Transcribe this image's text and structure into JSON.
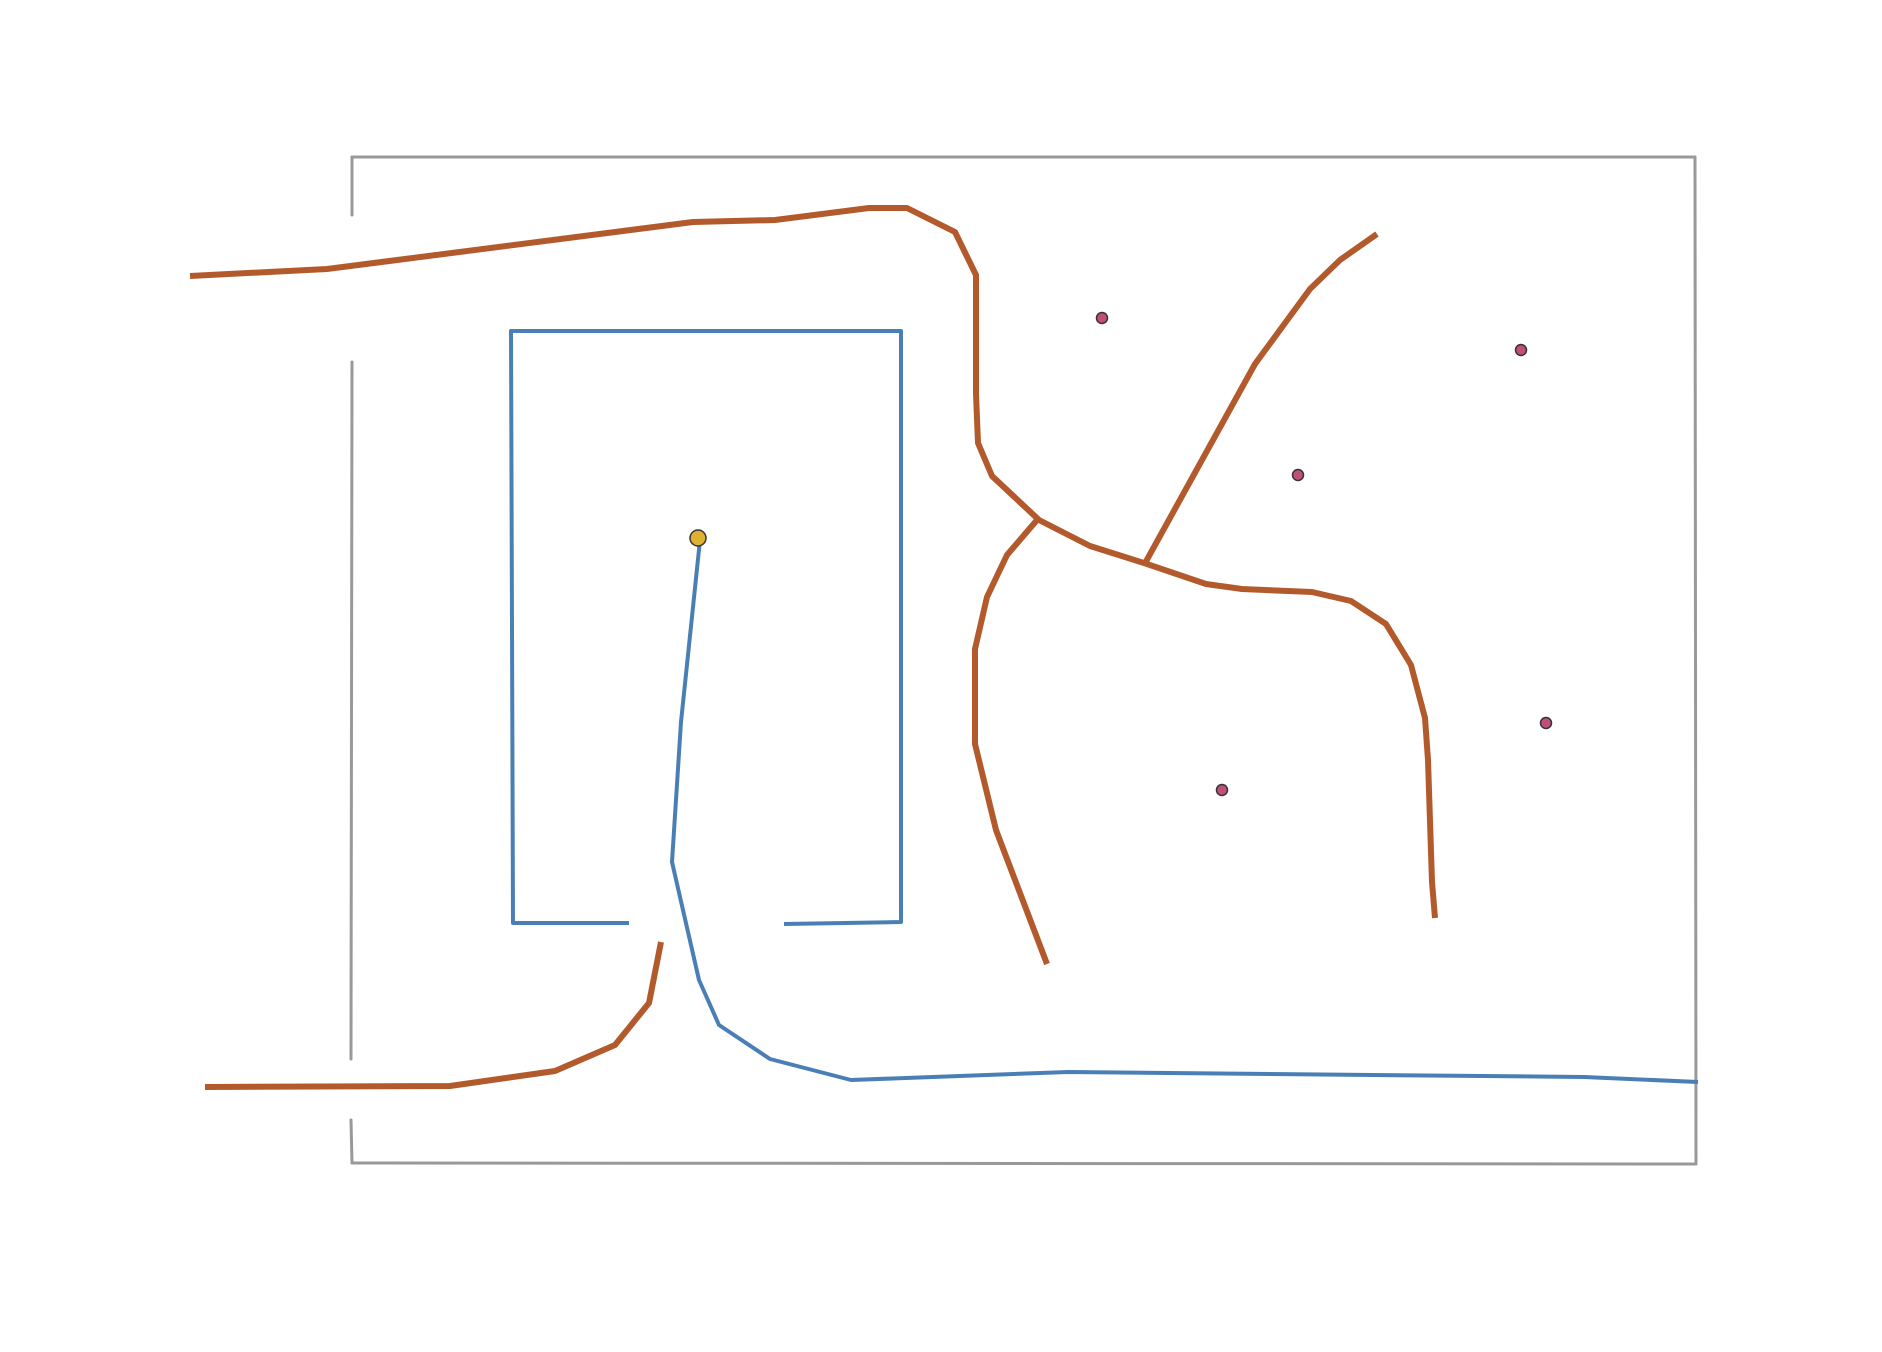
{
  "map": {
    "colors": {
      "background": "#ffffff",
      "boundary": "#999999",
      "road": "#b35a2c",
      "path": "#4a7fb5",
      "marker": "#c0507a",
      "start_marker": "#e0b030"
    },
    "elements": [
      {
        "name": "outer-boundary-top",
        "kind": "boundary"
      },
      {
        "name": "outer-boundary-left-upper",
        "kind": "boundary"
      },
      {
        "name": "outer-boundary-left-middle",
        "kind": "boundary"
      },
      {
        "name": "outer-boundary-left-lower",
        "kind": "boundary"
      },
      {
        "name": "outer-boundary-right",
        "kind": "boundary"
      },
      {
        "name": "outer-boundary-bottom",
        "kind": "boundary"
      },
      {
        "name": "inner-enclosure-wall",
        "kind": "path"
      },
      {
        "name": "inner-enclosure-right-stub",
        "kind": "path"
      },
      {
        "name": "walking-route",
        "kind": "path"
      },
      {
        "name": "road-north",
        "kind": "road"
      },
      {
        "name": "road-southwest",
        "kind": "road"
      },
      {
        "name": "road-south-branch",
        "kind": "road"
      },
      {
        "name": "road-east",
        "kind": "road"
      },
      {
        "name": "road-northeast",
        "kind": "road"
      },
      {
        "name": "start-marker",
        "kind": "start"
      },
      {
        "name": "poi-marker-1",
        "kind": "poi"
      },
      {
        "name": "poi-marker-2",
        "kind": "poi"
      },
      {
        "name": "poi-marker-3",
        "kind": "poi"
      },
      {
        "name": "poi-marker-4",
        "kind": "poi"
      },
      {
        "name": "poi-marker-5",
        "kind": "poi"
      }
    ]
  }
}
